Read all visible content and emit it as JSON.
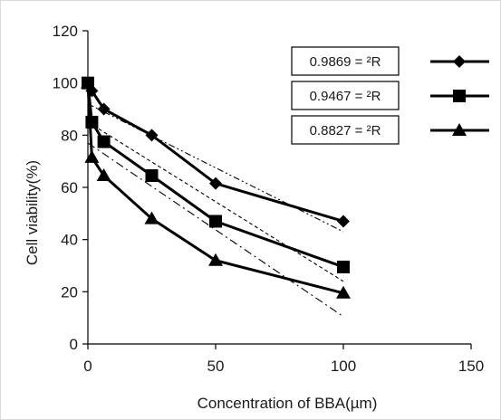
{
  "chart_data": {
    "type": "scatter",
    "xlabel": "Concentration of BBA(µm)",
    "ylabel": "Cell viability(%)",
    "xlim": [
      0,
      150
    ],
    "ylim": [
      0,
      120
    ],
    "xticks": [
      0,
      50,
      100,
      150
    ],
    "yticks": [
      0,
      20,
      40,
      60,
      80,
      100,
      120
    ],
    "grid": false,
    "legend_position": "top-right",
    "series": [
      {
        "marker": "diamond",
        "x": [
          0,
          1.56,
          6.25,
          25,
          50,
          100
        ],
        "y": [
          100,
          97,
          90,
          80,
          61.5,
          47
        ],
        "r2_label": "0.9869 = ²R",
        "trendline": {
          "x": [
            0,
            100
          ],
          "y": [
            92,
            43
          ],
          "dash": "dash-dot-dot"
        }
      },
      {
        "marker": "square",
        "x": [
          0,
          1.56,
          6.25,
          25,
          50,
          100
        ],
        "y": [
          100,
          85,
          77.5,
          64.5,
          47,
          29.5
        ],
        "r2_label": "0.9467 = ²R",
        "trendline": {
          "x": [
            0,
            100
          ],
          "y": [
            85,
            24
          ],
          "dash": "dashed"
        }
      },
      {
        "marker": "triangle",
        "x": [
          0,
          1.56,
          6.25,
          25,
          50,
          100
        ],
        "y": [
          100,
          71.5,
          64.5,
          48,
          32,
          19.5
        ],
        "r2_label": "0.8827 = ²R",
        "trendline": {
          "x": [
            0,
            100
          ],
          "y": [
            77,
            10.5
          ],
          "dash": "dash-dot"
        }
      }
    ]
  }
}
